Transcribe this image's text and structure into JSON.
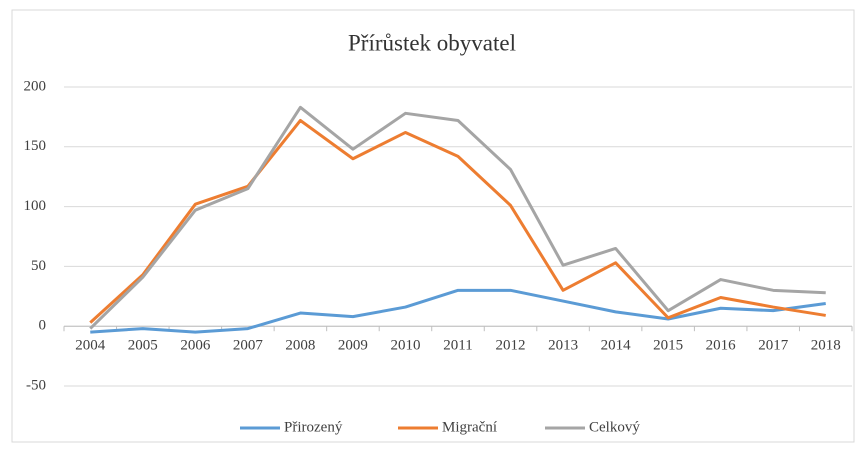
{
  "chart_data": {
    "type": "line",
    "title": "Přírůstek obyvatel",
    "categories": [
      "2004",
      "2005",
      "2006",
      "2007",
      "2008",
      "2009",
      "2010",
      "2011",
      "2012",
      "2013",
      "2014",
      "2015",
      "2016",
      "2017",
      "2018"
    ],
    "series": [
      {
        "name": "Přirozený",
        "color": "#5b9bd5",
        "values": [
          -5,
          -2,
          -5,
          -2,
          11,
          8,
          16,
          30,
          30,
          21,
          12,
          6,
          15,
          13,
          19
        ]
      },
      {
        "name": "Migrační",
        "color": "#ed7d31",
        "values": [
          3,
          43,
          102,
          117,
          172,
          140,
          162,
          142,
          101,
          30,
          53,
          7,
          24,
          16,
          9
        ]
      },
      {
        "name": "Celkový",
        "color": "#a5a5a5",
        "values": [
          -2,
          41,
          97,
          115,
          183,
          148,
          178,
          172,
          131,
          51,
          65,
          13,
          39,
          30,
          28
        ]
      }
    ],
    "ylim": [
      -50,
      200
    ],
    "yticks": [
      -50,
      0,
      50,
      100,
      150,
      200
    ],
    "grid": true,
    "legend": "bottom"
  }
}
